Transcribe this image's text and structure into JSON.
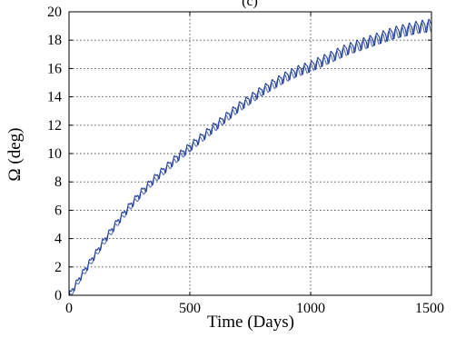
{
  "chart_data": {
    "type": "line",
    "title": "(c)",
    "xlabel": "Time (Days)",
    "ylabel": "Ω (deg)",
    "xlim": [
      0,
      1500
    ],
    "ylim": [
      0,
      20
    ],
    "x_ticks": [
      0,
      500,
      1000,
      1500
    ],
    "y_ticks": [
      0,
      2,
      4,
      6,
      8,
      10,
      12,
      14,
      16,
      18,
      20
    ],
    "grid": true,
    "legend": "none",
    "colors": {
      "series": "#1f3f9a"
    },
    "series": [
      {
        "x": [
          0,
          50,
          100,
          150,
          200,
          250,
          300,
          350,
          400,
          450,
          500,
          550,
          600,
          650,
          700,
          750,
          800,
          850,
          900,
          950,
          1000,
          1050,
          1100,
          1150,
          1200,
          1250,
          1300,
          1350,
          1400,
          1450,
          1500
        ],
        "values": [
          0.0,
          1.4,
          2.7,
          4.0,
          5.2,
          6.3,
          7.3,
          8.2,
          9.0,
          9.8,
          10.5,
          11.2,
          11.9,
          12.6,
          13.3,
          13.9,
          14.5,
          15.0,
          15.5,
          15.9,
          16.2,
          16.6,
          17.0,
          17.4,
          17.7,
          18.0,
          18.3,
          18.6,
          18.8,
          19.0,
          19.1
        ],
        "oscillation_period_days": 27
      }
    ]
  }
}
